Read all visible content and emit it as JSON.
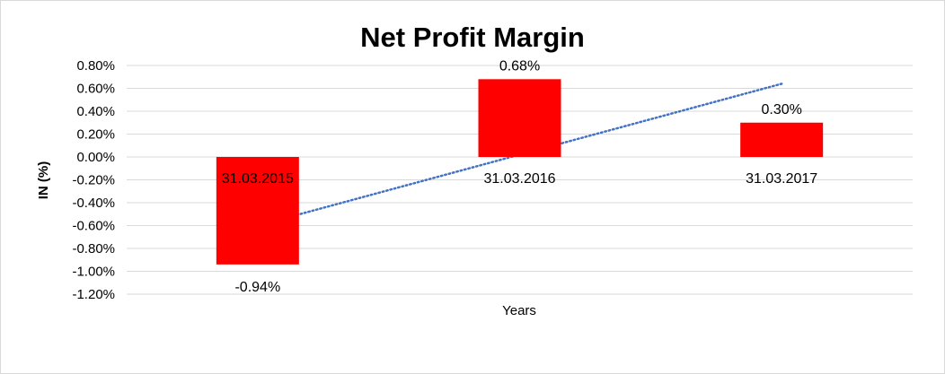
{
  "chart_data": {
    "type": "bar",
    "title": "Net Profit Margin",
    "xlabel": "Years",
    "ylabel": "IN (%)",
    "categories": [
      "31.03.2015",
      "31.03.2016",
      "31.03.2017"
    ],
    "values": [
      -0.94,
      0.68,
      0.3
    ],
    "data_labels": [
      "-0.94%",
      "0.68%",
      "0.30%"
    ],
    "ylim": [
      -1.2,
      0.8
    ],
    "y_ticks": [
      0.8,
      0.6,
      0.4,
      0.2,
      0.0,
      -0.2,
      -0.4,
      -0.6,
      -0.8,
      -1.0,
      -1.2
    ],
    "y_tick_labels": [
      "0.80%",
      "0.60%",
      "0.40%",
      "0.20%",
      "0.00%",
      "-0.20%",
      "-0.40%",
      "-0.60%",
      "-0.80%",
      "-1.00%",
      "-1.20%"
    ],
    "grid": true,
    "legend": "none",
    "trendline": {
      "type": "linear",
      "style": "dotted",
      "start": -0.6,
      "end": 0.64
    },
    "colors": {
      "bar": "#ff0000",
      "trendline": "#4472c4",
      "grid": "#d9d9d9"
    }
  }
}
